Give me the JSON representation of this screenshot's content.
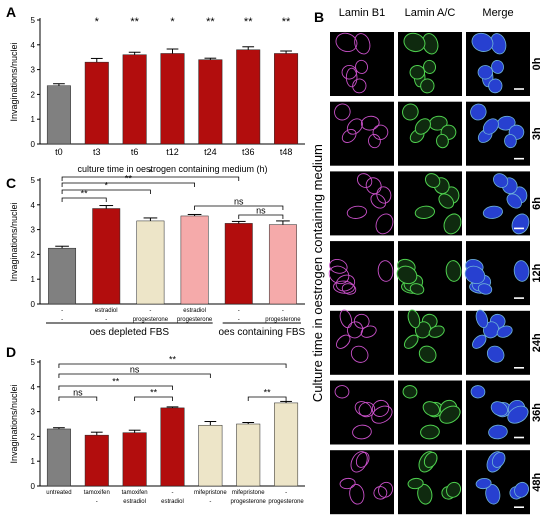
{
  "panels": {
    "A": "A",
    "B": "B",
    "C": "C",
    "D": "D"
  },
  "chart_data": [
    {
      "panel": "A",
      "type": "bar",
      "xlabel": "culture time in oestrogen containing medium (h)",
      "ylabel": "Invaginations/nuclei",
      "ylim": [
        0,
        5
      ],
      "yticks": [
        0,
        1,
        2,
        3,
        4,
        5
      ],
      "categories": [
        "t0",
        "t3",
        "t6",
        "t12",
        "t24",
        "t36",
        "t48"
      ],
      "values": [
        2.35,
        3.3,
        3.6,
        3.65,
        3.4,
        3.8,
        3.65
      ],
      "errors": [
        0.08,
        0.15,
        0.1,
        0.18,
        0.06,
        0.12,
        0.1
      ],
      "colors": [
        "#808080",
        "#b20d0d",
        "#b20d0d",
        "#b20d0d",
        "#b20d0d",
        "#b20d0d",
        "#b20d0d"
      ],
      "stars": [
        "",
        "*",
        "**",
        "*",
        "**",
        "**",
        "**"
      ]
    },
    {
      "panel": "C",
      "type": "bar",
      "ylabel": "Invaginations/nuclei",
      "ylim": [
        0,
        5
      ],
      "yticks": [
        0,
        1,
        2,
        3,
        4,
        5
      ],
      "categories": [
        [
          "-",
          "-"
        ],
        [
          "estradiol",
          "-"
        ],
        [
          "-",
          "progesterone"
        ],
        [
          "estradiol",
          "progesterone"
        ],
        [
          "-",
          "-"
        ],
        [
          "-",
          "progesterone"
        ]
      ],
      "values": [
        2.25,
        3.85,
        3.35,
        3.55,
        3.25,
        3.2
      ],
      "errors": [
        0.08,
        0.12,
        0.12,
        0.06,
        0.08,
        0.15
      ],
      "colors": [
        "#808080",
        "#b20d0d",
        "#ede5c8",
        "#f5aaaa",
        "#b20d0d",
        "#f5aaaa"
      ],
      "groups": [
        {
          "label": "oes depleted FBS",
          "from": 0,
          "to": 3
        },
        {
          "label": "oes containing FBS",
          "from": 4,
          "to": 5
        }
      ],
      "brackets": [
        {
          "from": 0,
          "to": 1,
          "label": "**"
        },
        {
          "from": 0,
          "to": 2,
          "label": "*"
        },
        {
          "from": 0,
          "to": 3,
          "label": "**"
        },
        {
          "from": 0,
          "to": 4,
          "label": "*"
        },
        {
          "from": 3,
          "to": 5,
          "label": "ns"
        },
        {
          "from": 4,
          "to": 5,
          "label": "ns"
        }
      ]
    },
    {
      "panel": "D",
      "type": "bar",
      "ylabel": "Invaginations/nuclei",
      "ylim": [
        0,
        5
      ],
      "yticks": [
        0,
        1,
        2,
        3,
        4,
        5
      ],
      "categories": [
        [
          "untreated",
          ""
        ],
        [
          "tamoxifen",
          "-"
        ],
        [
          "tamoxifen",
          "estradiol"
        ],
        [
          "-",
          "estradiol"
        ],
        [
          "mifepristone",
          "-"
        ],
        [
          "mifepristone",
          "progesterone"
        ],
        [
          "-",
          "progesterone"
        ]
      ],
      "values": [
        2.3,
        2.05,
        2.15,
        3.15,
        2.45,
        2.5,
        3.35
      ],
      "errors": [
        0.05,
        0.12,
        0.1,
        0.04,
        0.15,
        0.06,
        0.06
      ],
      "colors": [
        "#808080",
        "#b20d0d",
        "#b20d0d",
        "#b20d0d",
        "#ede5c8",
        "#ede5c8",
        "#ede5c8"
      ],
      "brackets": [
        {
          "from": 0,
          "to": 1,
          "label": "ns"
        },
        {
          "from": 2,
          "to": 3,
          "label": "**"
        },
        {
          "from": 0,
          "to": 3,
          "label": "**"
        },
        {
          "from": 0,
          "to": 4,
          "label": "ns"
        },
        {
          "from": 5,
          "to": 6,
          "label": "**"
        },
        {
          "from": 0,
          "to": 6,
          "label": "**"
        }
      ]
    }
  ],
  "micrographs": {
    "columns": [
      "Lamin B1",
      "Lamin A/C",
      "Merge"
    ],
    "rows": [
      "0h",
      "3h",
      "6h",
      "12h",
      "24h",
      "36h",
      "48h"
    ],
    "side_label": "Culture time in oestrogen containing medium",
    "channel_colors": {
      "lamin_b1": "#c850c8",
      "lamin_ac": "#4ed04e",
      "merge_fill": "#2740d0",
      "background": "#000000"
    }
  }
}
